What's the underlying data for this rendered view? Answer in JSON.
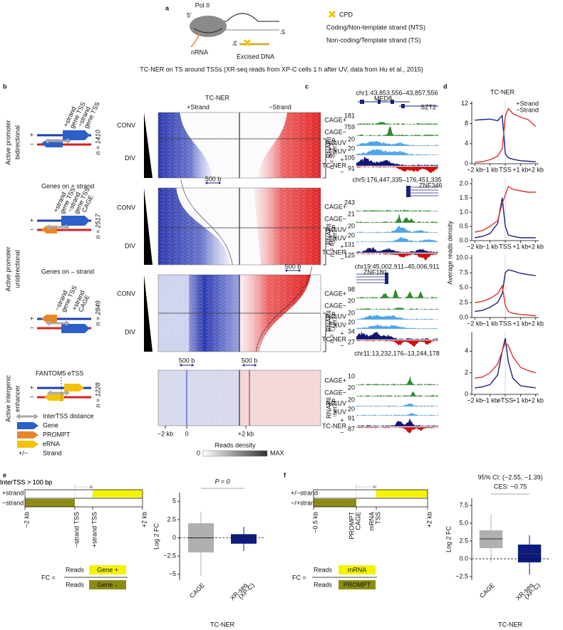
{
  "panel_labels": [
    "a",
    "b",
    "c",
    "d",
    "e",
    "f"
  ],
  "panel_a": {
    "pol": "Pol II",
    "five_prime_top": "5′",
    "five_prime_right": "5′",
    "three_prime": "3′",
    "nrna": "nRNA",
    "excised": "Excised DNA",
    "legend": [
      "CPD",
      "Coding/Non-template strand (NTS)",
      "Non-coding/Template strand (TS)"
    ],
    "caption": "TC-NER on TS around TSSs (XR-seq reads from XP-C cells 1 h after UV, data from Hu et al., 2015)"
  },
  "panel_b": {
    "groups": [
      [
        "Active promoter",
        "bidirectional"
      ],
      [
        "Active promoter",
        "unidirectional"
      ],
      [
        "Active intergenic",
        "enhancer"
      ]
    ],
    "n_left": [
      "n = 1410",
      "n = 2517",
      "n = 2849",
      "n = 1228"
    ],
    "n_right": [
      "n = 901",
      "n = 665",
      "n = 779"
    ],
    "subtitles": [
      "Genes on + strand",
      "Genes on – strand",
      "FANTOM5 eTSS"
    ],
    "strand_signs": [
      "+",
      "−"
    ],
    "bidir_labels": [
      [
        "+strand",
        "gene TSS"
      ],
      [
        "−strand",
        "gene TSS"
      ]
    ],
    "uni_plus_labels": [
      [
        "+strand",
        "gene TSS"
      ],
      [
        "−strand",
        "gene TSS"
      ],
      [
        "CAGE"
      ]
    ],
    "uni_minus_labels": [
      [
        "−strand",
        "gene TSS"
      ],
      [
        "+strand",
        "CAGE"
      ]
    ],
    "block_labels": [
      "CONV",
      "DIV"
    ],
    "heatmap": {
      "title": "TC-NER",
      "plus": "+Strand",
      "minus": "−Strand",
      "bp": "500 b",
      "x_labels": [
        "−2 kb",
        "0",
        "+2 kb"
      ],
      "colorbar_title": "Reads density",
      "colorbar": [
        "0",
        "MAX"
      ]
    },
    "legend": [
      "InterTSS distance",
      "Gene",
      "PROMPT",
      "eRNA",
      "Strand"
    ],
    "legend_sign": "+/−"
  },
  "panel_c": {
    "tracks": [
      "CAGE+",
      "CAGE−",
      "NO UV",
      "+UV",
      "TC-NER"
    ],
    "rnapii": [
      "RNAPII",
      "-ser2P"
    ],
    "signs": [
      "+",
      "−"
    ],
    "loci": [
      {
        "coords": "chr1:43,853,556–43,857,556",
        "genes": [
          "MED8",
          "SZT2"
        ],
        "scales": [
          "181",
          "759",
          "20",
          "20",
          "105",
          "91"
        ]
      },
      {
        "coords": "chr5:176,447,335–176,451,335",
        "genes": [
          "ZNF346"
        ],
        "scales": [
          "243",
          "21",
          "20",
          "20",
          "131",
          "125"
        ]
      },
      {
        "coords": "chr19:45,002,911–45,006,911",
        "genes": [
          "ZNF180"
        ],
        "scales": [
          "98",
          "20",
          "20",
          "20",
          "34",
          "27"
        ]
      },
      {
        "coords": "chr11:13,232,176–13,244,178",
        "genes": [],
        "scales": [
          "10",
          "20",
          "20",
          "20",
          "91",
          "87"
        ]
      }
    ]
  },
  "panel_d": {
    "y_label": "Average reads density"
  },
  "chart_data": [
    {
      "type": "line",
      "title": "TC-NER",
      "x": [
        -2,
        -1.5,
        -1,
        -0.5,
        -0.2,
        0,
        0.2,
        0.5,
        1,
        1.5,
        2
      ],
      "series": [
        {
          "name": "+Strand",
          "color": "#1b237a",
          "values": [
            8.7,
            8.8,
            8.9,
            8.6,
            9.6,
            2,
            1.2,
            0.9,
            0.6,
            0.5,
            0.4
          ]
        },
        {
          "name": "−Strand",
          "color": "#d6352f",
          "values": [
            0.3,
            0.4,
            0.8,
            1.5,
            3,
            9.5,
            11,
            10,
            9.3,
            8.8,
            7.4
          ]
        }
      ],
      "xlim": [
        -2.2,
        2.2
      ],
      "xticks": [
        {
          "value": -2,
          "label": "−2 kb"
        },
        {
          "value": -1,
          "label": "−1 kb"
        },
        {
          "value": 0,
          "label": "TSS"
        },
        {
          "value": 1,
          "label": "+1 kb"
        },
        {
          "value": 2,
          "label": "+2 kb"
        }
      ],
      "ylim": [
        0,
        12.5
      ],
      "yticks": [
        0,
        4,
        8,
        12
      ],
      "legend": "top-right"
    },
    {
      "type": "line",
      "x": [
        -2,
        -1.5,
        -1,
        -0.5,
        -0.2,
        0,
        0.2,
        0.5,
        1,
        1.5,
        2
      ],
      "series": [
        {
          "color": "#1b237a",
          "values": [
            0.1,
            0.15,
            0.25,
            0.6,
            1.5,
            0.5,
            0.2,
            0.15,
            0.1,
            0.1,
            0.1
          ]
        },
        {
          "color": "#d6352f",
          "values": [
            0.3,
            0.35,
            0.5,
            0.7,
            1.3,
            1.6,
            1.9,
            1.8,
            1.75,
            1.7,
            1.7
          ]
        }
      ],
      "xlim": [
        -2.2,
        2.2
      ],
      "xticks": [
        {
          "value": -2,
          "label": "−2 kb"
        },
        {
          "value": -1,
          "label": "−1 kb"
        },
        {
          "value": 0,
          "label": "TSS"
        },
        {
          "value": 1,
          "label": "+1 kb"
        },
        {
          "value": 2,
          "label": "+2 kb"
        }
      ],
      "ylim": [
        0,
        2.2
      ],
      "yticks": [
        {
          "value": 0,
          "label": "0.0"
        },
        0.5,
        {
          "value": 1,
          "label": "1.0"
        },
        1.5,
        {
          "value": 2,
          "label": "2.0"
        }
      ]
    },
    {
      "type": "line",
      "x": [
        -2,
        -1.5,
        -1,
        -0.5,
        -0.2,
        0,
        0.2,
        0.5,
        1,
        1.5,
        2
      ],
      "series": [
        {
          "color": "#1b237a",
          "values": [
            1,
            1.2,
            1.7,
            2.5,
            4,
            7.5,
            8,
            7.8,
            7.4,
            7.2,
            7
          ]
        },
        {
          "color": "#d6352f",
          "values": [
            2.5,
            2.7,
            3.2,
            4,
            5.3,
            2,
            1,
            0.7,
            0.5,
            0.4,
            0.3
          ]
        }
      ],
      "xlim": [
        -2.2,
        2.2
      ],
      "xticks": [
        {
          "value": -2,
          "label": "−2 kb"
        },
        {
          "value": -1,
          "label": "−1 kb"
        },
        {
          "value": 0,
          "label": "TSS"
        },
        {
          "value": 1,
          "label": "+1 kb"
        },
        {
          "value": 2,
          "label": "+2 kb"
        }
      ],
      "ylim": [
        0,
        10.5
      ],
      "yticks": [
        {
          "value": 0,
          "label": "0.0"
        },
        2.5,
        {
          "value": 5,
          "label": "5.0"
        },
        7.5,
        {
          "value": 10,
          "label": "10.0"
        }
      ]
    },
    {
      "type": "line",
      "x": [
        -2,
        -1.5,
        -1,
        -0.5,
        -0.2,
        0,
        0.2,
        0.5,
        1,
        1.5,
        2
      ],
      "series": [
        {
          "color": "#1b237a",
          "values": [
            0.6,
            0.7,
            0.9,
            1.8,
            4,
            5.2,
            3,
            1.5,
            0.8,
            0.7,
            0.6
          ]
        },
        {
          "color": "#d6352f",
          "values": [
            1.5,
            1.6,
            2,
            2.8,
            4,
            4.8,
            4.5,
            3.5,
            2.5,
            2.2,
            2
          ]
        }
      ],
      "xlim": [
        -2.2,
        2.2
      ],
      "xticks": [
        {
          "value": -2,
          "label": "−2 kb"
        },
        {
          "value": -1,
          "label": "−1 kb"
        },
        {
          "value": 0,
          "label": "eTSS"
        },
        {
          "value": 1,
          "label": "+1 kb"
        },
        {
          "value": 2,
          "label": "+2 kb"
        }
      ],
      "ylim": [
        0,
        5.8
      ],
      "yticks": [
        0,
        2,
        4
      ]
    },
    {
      "type": "box",
      "categories": [
        [
          "CAGE"
        ],
        [
          "XR-seq",
          "(XP-C)"
        ]
      ],
      "boxes": [
        {
          "whisker_low": -5.2,
          "q1": -2,
          "median": 0,
          "q3": 2,
          "whisker_high": 3.6,
          "color": "#b0b0b0"
        },
        {
          "whisker_low": -1.8,
          "q1": -0.8,
          "median": 0,
          "q3": 0.5,
          "whisker_high": 1.5,
          "color": "#0d1a80"
        }
      ],
      "ylim": [
        -5.8,
        6.2
      ],
      "yticks": [
        {
          "value": -5,
          "label": "−5"
        },
        {
          "value": -2.5,
          "label": "−2.5"
        },
        0,
        2.5,
        5
      ],
      "y_label": "Log 2 FC",
      "x_label": "TC-NER",
      "annotations": [
        "P = 0"
      ]
    },
    {
      "type": "box",
      "categories": [
        [
          "CAGE"
        ],
        [
          "XR-seq",
          "(XP-C)"
        ]
      ],
      "boxes": [
        {
          "whisker_low": -0.5,
          "q1": 1.5,
          "median": 2.8,
          "q3": 4,
          "whisker_high": 6.2,
          "color": "#b0b0b0"
        },
        {
          "whisker_low": -2.2,
          "q1": -0.5,
          "median": 0.7,
          "q3": 2,
          "whisker_high": 3.3,
          "color": "#0d1a80"
        }
      ],
      "ylim": [
        -3,
        8.5
      ],
      "yticks": [
        {
          "value": -2.5,
          "label": "−2.5"
        },
        {
          "value": 0,
          "label": "0.0"
        },
        2.5,
        {
          "value": 5,
          "label": "5.0"
        },
        7.5
      ],
      "y_label": "Log 2 FC",
      "x_label": "TC-NER",
      "annotations": [
        "95% CI: (−2.55, −1.39)",
        "CES: −0.75"
      ]
    }
  ],
  "panel_e": {
    "inter": "InterTSS > 100 bp",
    "strands": [
      "+strand",
      "−strand"
    ],
    "ticks": [
      [
        "−2 kb"
      ],
      [
        "−strand TSS"
      ],
      [
        "+strand TSS"
      ],
      [
        "+2 kb"
      ]
    ],
    "fc": "FC =",
    "reads": "Reads",
    "boxes": [
      "Gene +",
      "Gene –"
    ]
  },
  "panel_f": {
    "inter": "InterTSS > 100 bp",
    "strands": [
      "+/−strand",
      "−/+strand"
    ],
    "ticks": [
      [
        "−0.5 kb"
      ],
      [
        "PROMPT",
        "CAGE"
      ],
      [
        "mRNA",
        "TSS"
      ],
      [
        "+2 kb"
      ]
    ],
    "fc": "FC =",
    "reads": "Reads",
    "boxes": [
      "mRNA",
      "PROMPT"
    ]
  }
}
